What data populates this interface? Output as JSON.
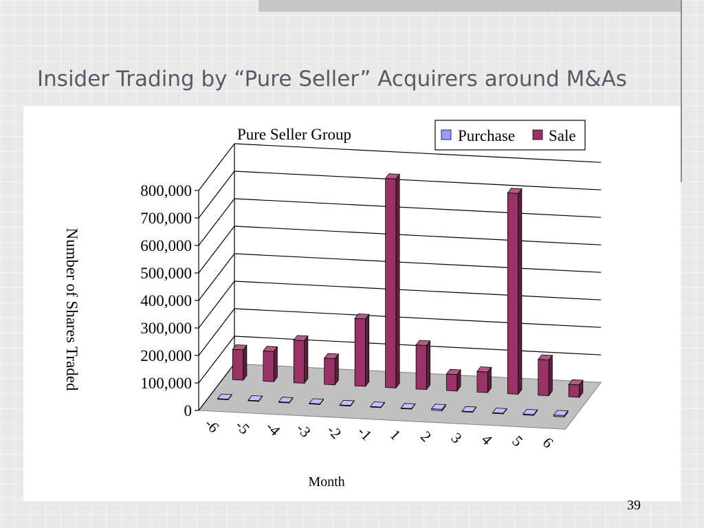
{
  "slide": {
    "title": "Insider Trading by “Pure Seller” Acquirers around M&As",
    "page_number": "39"
  },
  "chart_data": {
    "type": "bar",
    "title": "Pure Seller Group",
    "xlabel": "Month",
    "ylabel": "Number of Shares Traded",
    "categories": [
      "-6",
      "-5",
      "-4",
      "-3",
      "-2",
      "-1",
      "1",
      "2",
      "3",
      "4",
      "5",
      "6"
    ],
    "series": [
      {
        "name": "Purchase",
        "values": [
          2000,
          2000,
          2000,
          2000,
          2000,
          2000,
          2000,
          5000,
          2000,
          2000,
          3000,
          5000
        ]
      },
      {
        "name": "Sale",
        "values": [
          110000,
          110000,
          155000,
          95000,
          245000,
          760000,
          160000,
          60000,
          75000,
          730000,
          130000,
          45000
        ]
      }
    ],
    "ylim": [
      0,
      800000
    ],
    "yticks": [
      "0",
      "100,000",
      "200,000",
      "300,000",
      "400,000",
      "500,000",
      "600,000",
      "700,000",
      "800,000"
    ],
    "grid": true,
    "legend": "top-right",
    "colors": {
      "Purchase": {
        "front": "#9a9aff",
        "side": "#6363b0",
        "top": "#c0c0ff"
      },
      "Sale": {
        "front": "#993366",
        "side": "#5c1f3d",
        "top": "#b55a88"
      },
      "floor": "#c0c0c0",
      "floor_edge": "#808080"
    }
  }
}
